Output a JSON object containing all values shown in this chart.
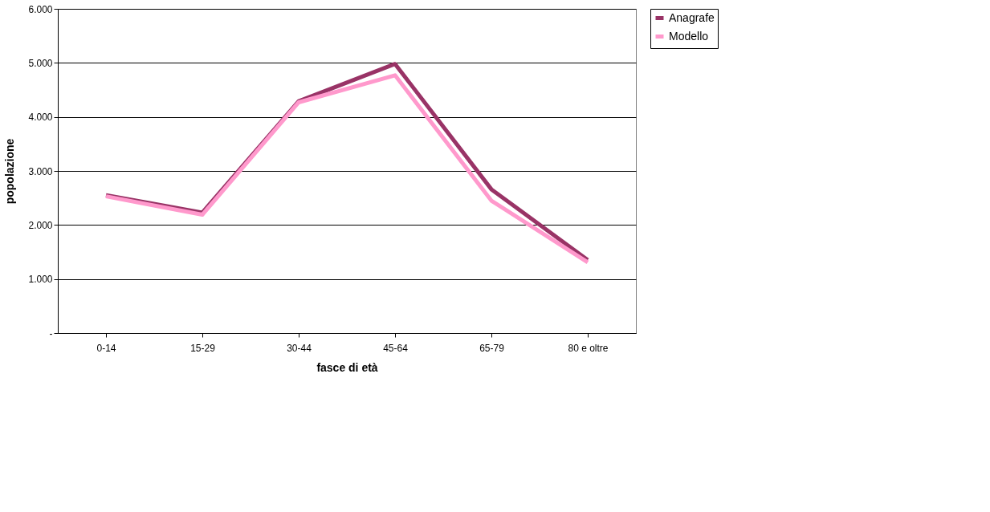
{
  "chart_data": {
    "type": "line",
    "xlabel": "fasce di età",
    "ylabel": "popolazione",
    "categories": [
      "0-14",
      "15-29",
      "30-44",
      "45-64",
      "65-79",
      "80 e oltre"
    ],
    "series": [
      {
        "name": "Anagrafe",
        "color": "#993366",
        "values": [
          2550,
          2230,
          4290,
          4980,
          2660,
          1350
        ]
      },
      {
        "name": "Modello",
        "color": "#ff99cc",
        "values": [
          2530,
          2190,
          4270,
          4770,
          2450,
          1310
        ]
      }
    ],
    "ylim": [
      0,
      6000
    ],
    "yticks": [
      {
        "value": 0,
        "label": "-"
      },
      {
        "value": 1000,
        "label": "1.000"
      },
      {
        "value": 2000,
        "label": "2.000"
      },
      {
        "value": 3000,
        "label": "3.000"
      },
      {
        "value": 4000,
        "label": "4.000"
      },
      {
        "value": 5000,
        "label": "5.000"
      },
      {
        "value": 6000,
        "label": "6.000"
      }
    ],
    "grid": "y",
    "legend": "right",
    "marker": "none",
    "line_style": "solid"
  }
}
